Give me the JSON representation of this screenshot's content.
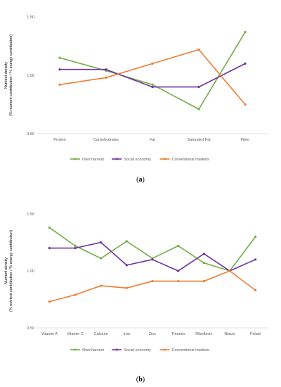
{
  "chart_data": [
    {
      "type": "line",
      "panel_label": "a",
      "ylabel_line1": "Nutrient density",
      "ylabel_line2": "(% nutrient contribution / % energy contribution)",
      "ylim": [
        0.5,
        1.5
      ],
      "yticks": [
        "0.50",
        "1.00",
        "1.50"
      ],
      "categories": [
        "Protein",
        "Carbohydrates",
        "Fat",
        "Saturated Fat",
        "Fiber"
      ],
      "legend_position": "bottom",
      "series": [
        {
          "name": "Own harvest",
          "color": "#70ad47",
          "values": [
            1.15,
            1.04,
            0.92,
            0.71,
            1.37
          ]
        },
        {
          "name": "Social economy",
          "color": "#7030a0",
          "values": [
            1.05,
            1.05,
            0.9,
            0.9,
            1.1
          ]
        },
        {
          "name": "Conventional markets",
          "color": "#ed7d31",
          "values": [
            0.92,
            0.98,
            1.1,
            1.22,
            0.75
          ]
        }
      ]
    },
    {
      "type": "line",
      "panel_label": "b",
      "ylabel_line1": "Nutrient density",
      "ylabel_line2": "(% nutrient contribution / % energy contribution)",
      "ylim": [
        0.5,
        1.5
      ],
      "yticks": [
        "0.50",
        "1.00",
        "1.50"
      ],
      "categories": [
        "Vitamin A",
        "Vitamin C",
        "Calcium",
        "Iron",
        "Zinc",
        "Thiamin",
        "Riboflavin",
        "Niacin",
        "Folate"
      ],
      "legend_position": "bottom",
      "series": [
        {
          "name": "Own harvest",
          "color": "#70ad47",
          "values": [
            1.38,
            1.22,
            1.11,
            1.26,
            1.11,
            1.22,
            1.07,
            1.0,
            1.3
          ]
        },
        {
          "name": "Social economy",
          "color": "#7030a0",
          "values": [
            1.2,
            1.2,
            1.25,
            1.05,
            1.1,
            1.0,
            1.15,
            1.0,
            1.1
          ]
        },
        {
          "name": "Conventional markets",
          "color": "#ed7d31",
          "values": [
            0.73,
            0.79,
            0.87,
            0.85,
            0.91,
            0.91,
            0.91,
            1.0,
            0.83
          ]
        }
      ]
    }
  ]
}
